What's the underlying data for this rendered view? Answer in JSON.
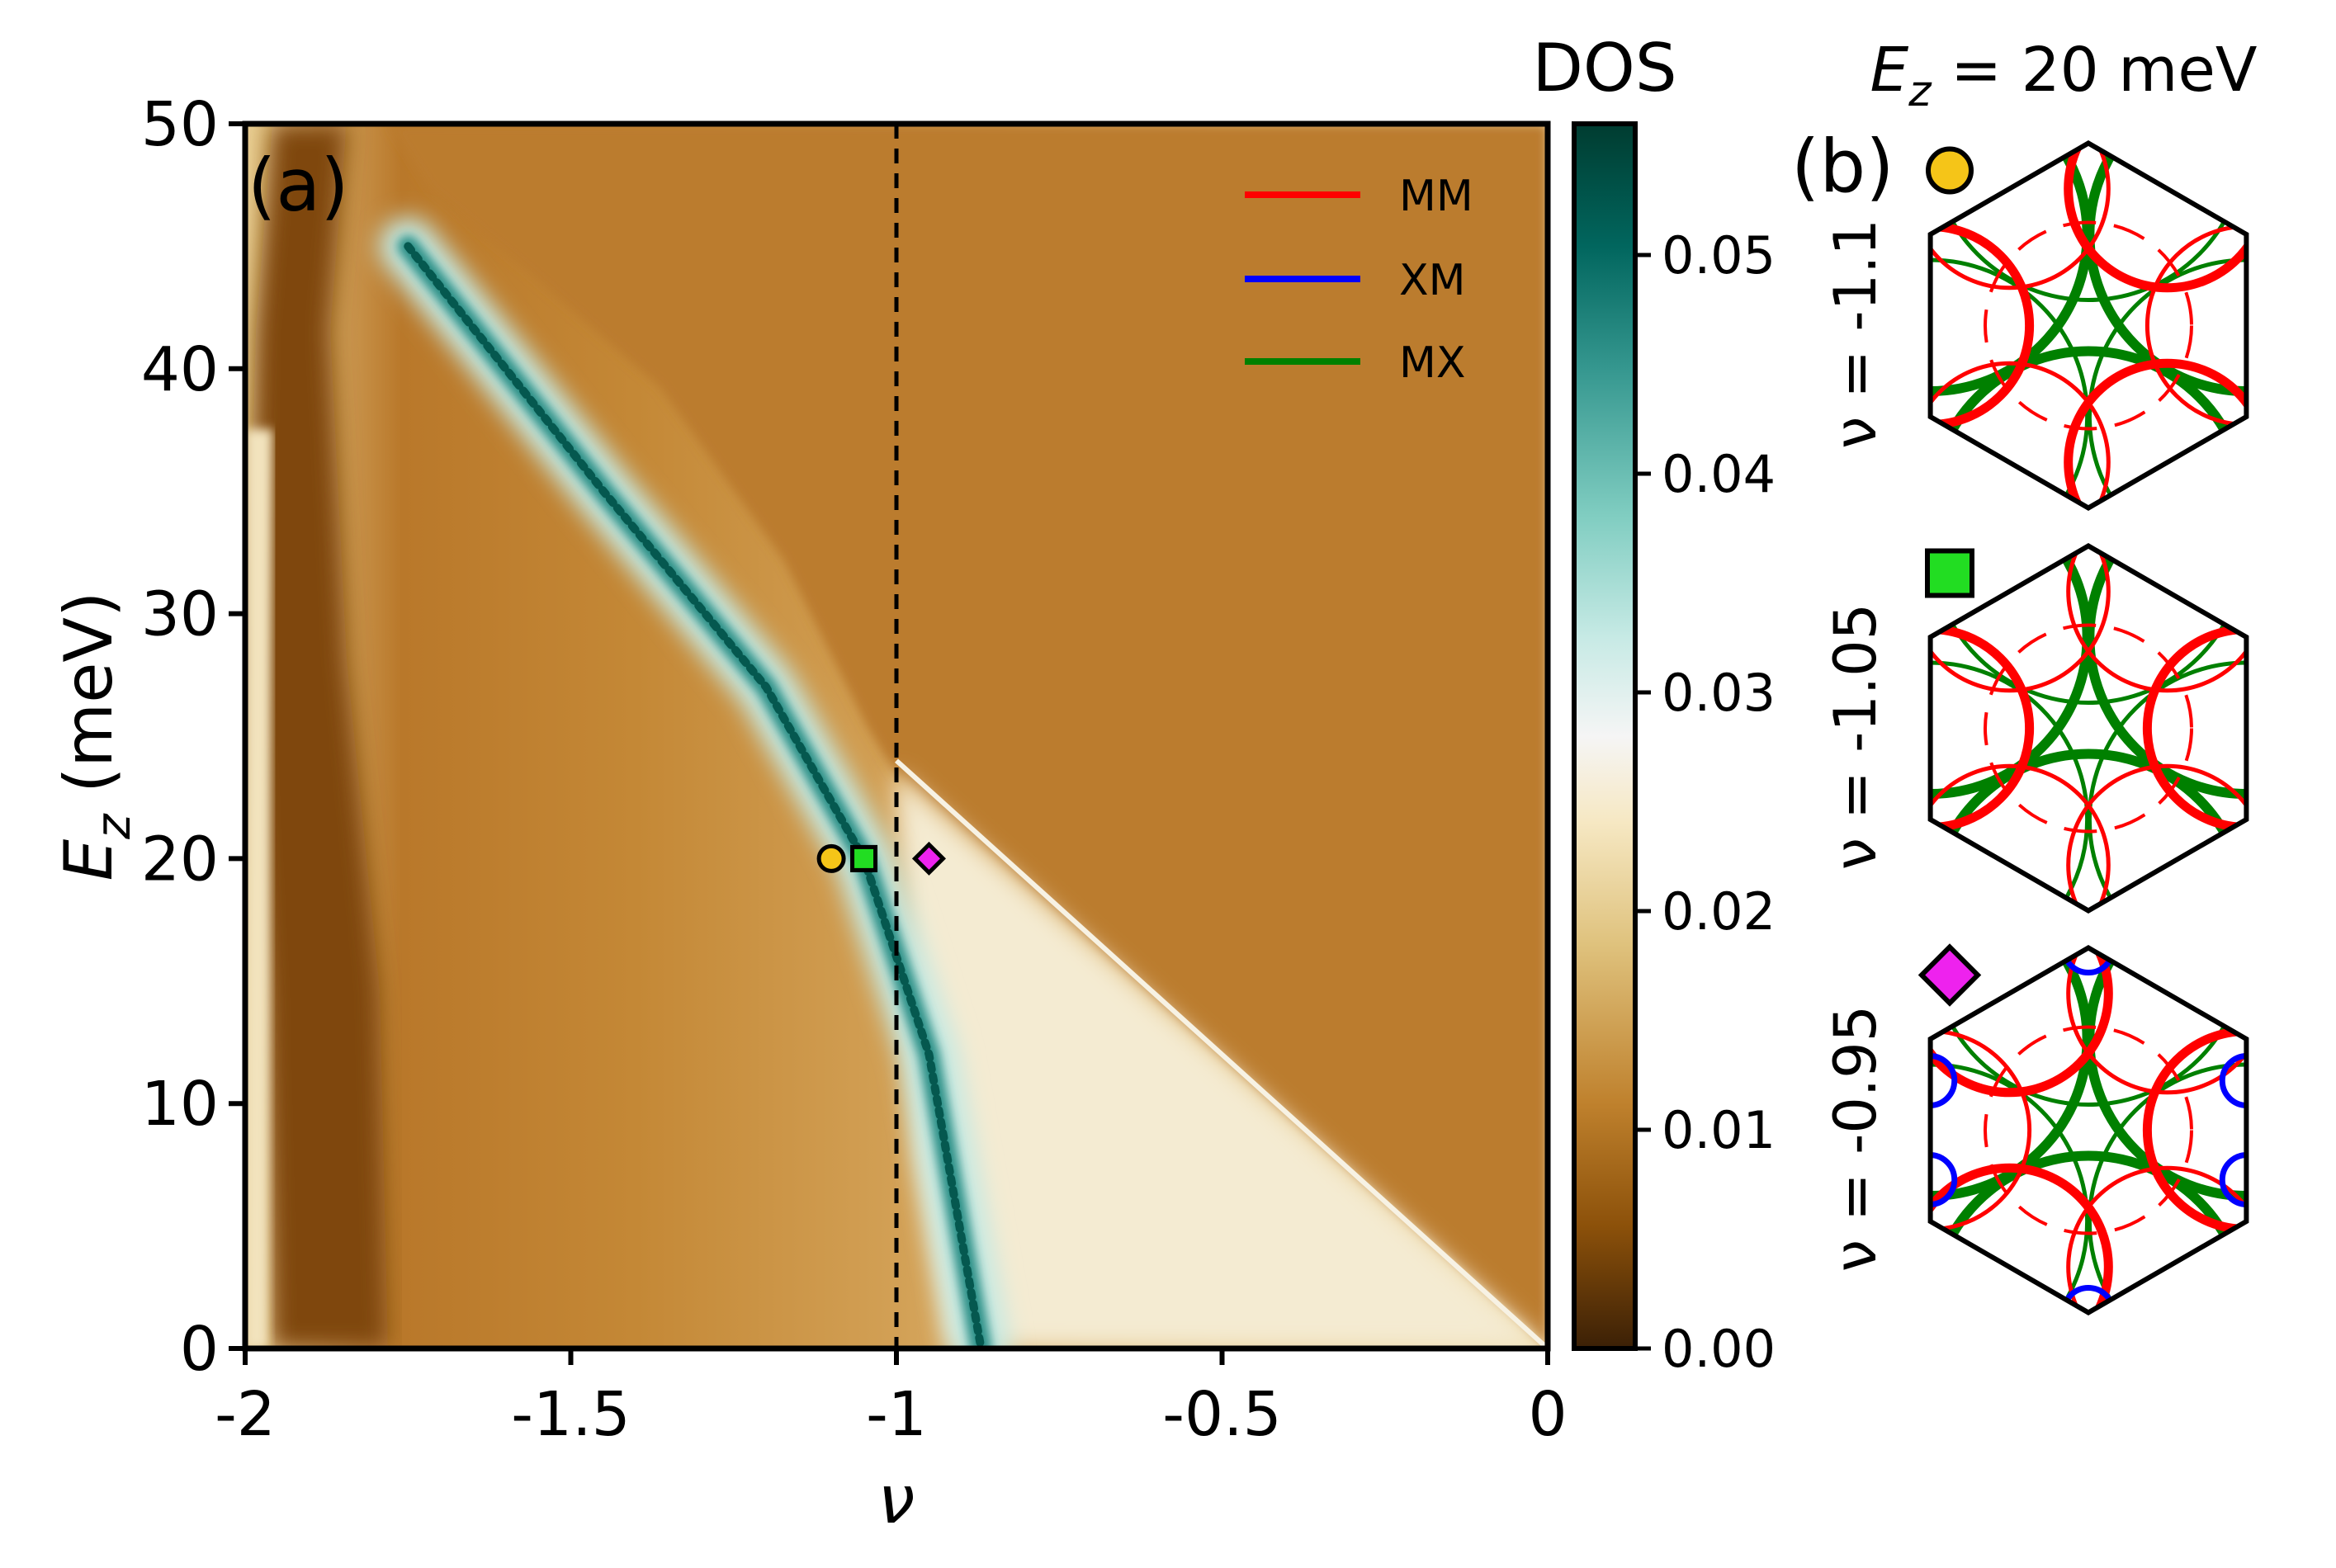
{
  "chart_data": [
    {
      "panel_label": "(a)",
      "type": "heatmap",
      "title": "",
      "xlabel": "ν",
      "ylabel_main": "E",
      "ylabel_sub": "z",
      "ylabel_units": " (meV)",
      "xlim": [
        -2,
        0
      ],
      "ylim": [
        0,
        50
      ],
      "x_ticks": [
        {
          "value": -2,
          "label": "-2"
        },
        {
          "value": -1.5,
          "label": "-1.5"
        },
        {
          "value": -1,
          "label": "-1"
        },
        {
          "value": -0.5,
          "label": "-0.5"
        },
        {
          "value": 0,
          "label": "0"
        }
      ],
      "y_ticks": [
        {
          "value": 0,
          "label": "0"
        },
        {
          "value": 10,
          "label": "10"
        },
        {
          "value": 20,
          "label": "20"
        },
        {
          "value": 30,
          "label": "30"
        },
        {
          "value": 40,
          "label": "40"
        },
        {
          "value": 50,
          "label": "50"
        }
      ],
      "dashed_vline_x": -1,
      "colorbar": {
        "title": "DOS",
        "range": [
          0,
          0.056
        ],
        "ticks": [
          {
            "value": 0,
            "label": "0.00"
          },
          {
            "value": 0.01,
            "label": "0.01"
          },
          {
            "value": 0.02,
            "label": "0.02"
          },
          {
            "value": 0.03,
            "label": "0.03"
          },
          {
            "value": 0.04,
            "label": "0.04"
          },
          {
            "value": 0.05,
            "label": "0.05"
          }
        ],
        "colormap": [
          "#3b2006",
          "#8c510a",
          "#bf812d",
          "#dfc27d",
          "#f6e8c3",
          "#f5f5f5",
          "#c7eae5",
          "#80cdc1",
          "#35978f",
          "#01665e",
          "#003c30"
        ]
      },
      "features": {
        "high_dos_ridge": [
          [
            -1.75,
            45
          ],
          [
            -1.45,
            35
          ],
          [
            -1.2,
            27
          ],
          [
            -1.05,
            20
          ],
          [
            -0.95,
            12
          ],
          [
            -0.87,
            0
          ]
        ],
        "van_hove_edge": [
          [
            -1.0,
            24
          ],
          [
            0,
            0
          ]
        ],
        "left_low_edge": [
          [
            -1.72,
            0
          ],
          [
            -1.75,
            15
          ],
          [
            -1.82,
            30
          ],
          [
            -1.9,
            45
          ]
        ]
      },
      "markers": [
        {
          "nu": -1.1,
          "Ez": 20,
          "shape": "circle",
          "color": "#f5c518"
        },
        {
          "nu": -1.05,
          "Ez": 20,
          "shape": "square",
          "color": "#22dd22"
        },
        {
          "nu": -0.95,
          "Ez": 20,
          "shape": "diamond",
          "color": "#ee22ee"
        }
      ],
      "legend": {
        "position": "top-right",
        "entries": [
          {
            "label": "MM",
            "color": "#ff0000"
          },
          {
            "label": "XM",
            "color": "#0000ff"
          },
          {
            "label": "MX",
            "color": "#008000"
          }
        ]
      }
    },
    {
      "panel_label": "(b)",
      "type": "fermi-surface",
      "title_main": "E",
      "title_sub": "z",
      "title_rest": " = 20 meV",
      "panels": [
        {
          "label": "ν = -1.1",
          "marker": "circle",
          "marker_color": "#f5c518",
          "mm_weight": "outer",
          "xm_pockets": false
        },
        {
          "label": "ν = -1.05",
          "marker": "square",
          "marker_color": "#22dd22",
          "mm_weight": "mixed",
          "xm_pockets": false
        },
        {
          "label": "ν = -0.95",
          "marker": "diamond",
          "marker_color": "#ee22ee",
          "mm_weight": "inner",
          "xm_pockets": true
        }
      ]
    }
  ]
}
